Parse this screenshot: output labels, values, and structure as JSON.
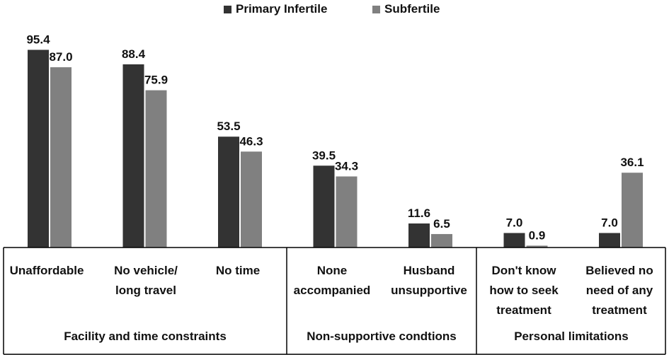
{
  "chart_data": {
    "type": "bar",
    "title": "",
    "xlabel": "",
    "ylabel": "",
    "ylim": [
      0,
      100
    ],
    "grid": false,
    "legend_position": "top-center",
    "categories": [
      "Unaffordable",
      "No vehicle/ long travel",
      "No time",
      "None accompanied",
      "Husband unsupportive",
      "Don't know how to seek treatment",
      "Believed no need of any treatment"
    ],
    "category_lines": [
      [
        "Unaffordable"
      ],
      [
        "No vehicle/",
        "long travel"
      ],
      [
        "No time"
      ],
      [
        "None",
        "accompanied"
      ],
      [
        "Husband",
        "unsupportive"
      ],
      [
        "Don't know",
        "how to seek",
        "treatment"
      ],
      [
        "Believed no",
        "need of any",
        "treatment"
      ]
    ],
    "series": [
      {
        "name": "Primary Infertile",
        "color": "#333333",
        "values": [
          95.4,
          88.4,
          53.5,
          39.5,
          11.6,
          7.0,
          7.0
        ]
      },
      {
        "name": "Subfertile",
        "color": "#808080",
        "values": [
          87.0,
          75.9,
          46.3,
          34.3,
          6.5,
          0.9,
          36.1
        ]
      }
    ],
    "value_labels": [
      [
        "95.4",
        "88.4",
        "53.5",
        "39.5",
        "11.6",
        "7.0",
        "7.0"
      ],
      [
        "87.0",
        "75.9",
        "46.3",
        "34.3",
        "6.5",
        "0.9",
        "36.1"
      ]
    ],
    "groups": [
      {
        "label": "Facility and time constraints",
        "categories": [
          0,
          1,
          2
        ]
      },
      {
        "label": "Non-supportive condtions",
        "categories": [
          3,
          4
        ]
      },
      {
        "label": "Personal limitations",
        "categories": [
          5,
          6
        ]
      }
    ]
  }
}
